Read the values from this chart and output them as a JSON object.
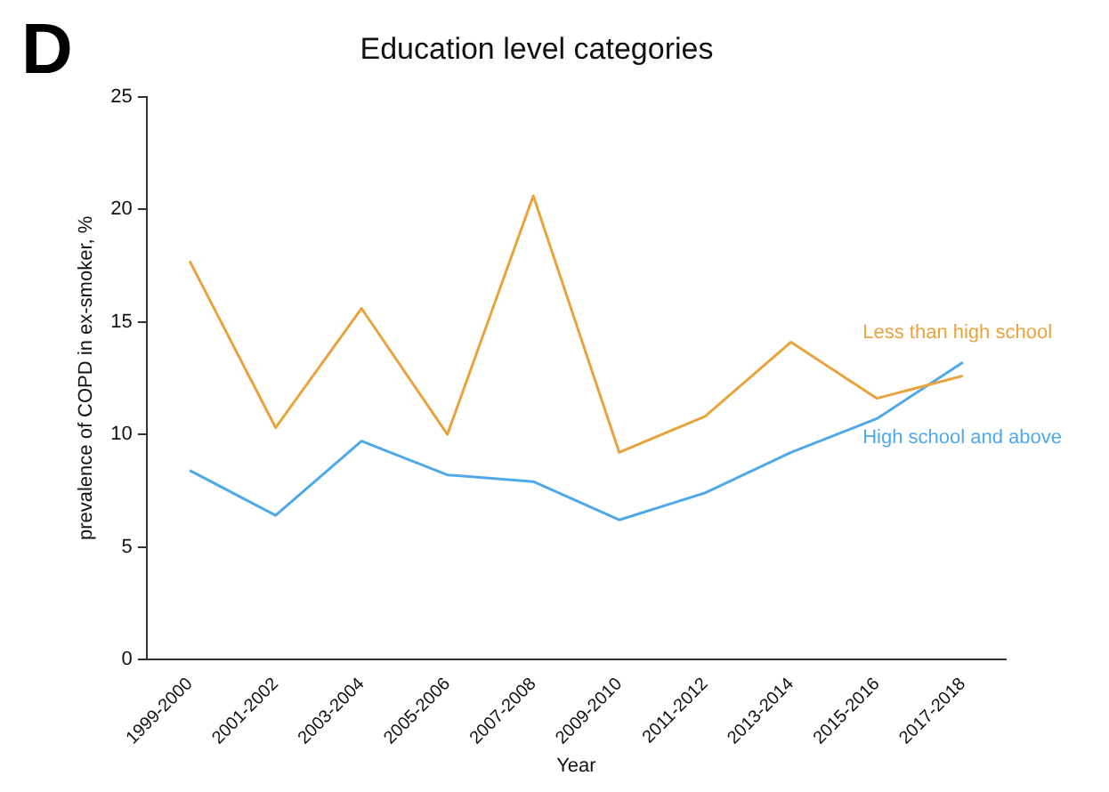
{
  "chart_data": {
    "type": "line",
    "title": "Education level categories",
    "xlabel": "Year",
    "ylabel": "prevalence of COPD in ex-smoker, %",
    "annotations": [
      "D"
    ],
    "categories": [
      "1999-2000",
      "2001-2002",
      "2003-2004",
      "2005-2006",
      "2007-2008",
      "2009-2010",
      "2011-2012",
      "2013-2014",
      "2015-2016",
      "2017-2018"
    ],
    "series": [
      {
        "name": "Less than high school",
        "color": "#e8a33d",
        "values": [
          17.7,
          10.3,
          15.6,
          10.0,
          20.6,
          9.2,
          10.8,
          14.1,
          11.6,
          12.6
        ]
      },
      {
        "name": "High school and above",
        "color": "#4fa9e8",
        "values": [
          8.4,
          6.4,
          9.7,
          8.2,
          7.9,
          6.2,
          7.4,
          9.2,
          10.7,
          13.2
        ]
      }
    ],
    "ylim": [
      0,
      25
    ],
    "yticks": [
      0,
      5,
      10,
      15,
      20,
      25
    ],
    "grid": false,
    "legend": false,
    "marker": "none",
    "line_style": "solid"
  }
}
